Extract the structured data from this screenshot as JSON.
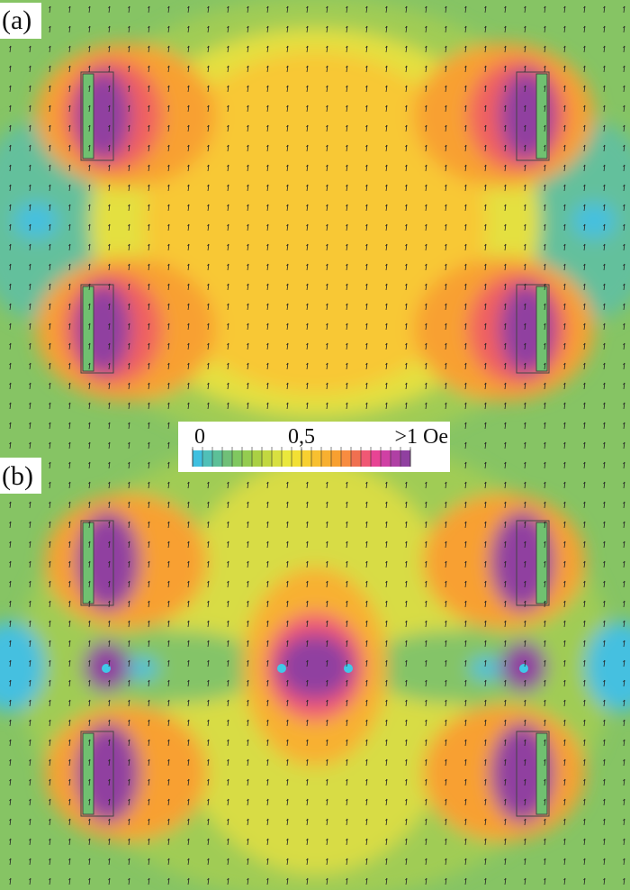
{
  "chart_data": {
    "type": "field-map",
    "panels": [
      {
        "label": "(a)"
      },
      {
        "label": "(b)"
      }
    ],
    "colorbar": {
      "clim": [
        0,
        1
      ],
      "ticks": [
        0,
        {
          "value": 0.5,
          "label": "0,5"
        },
        {
          "value": 1,
          "label": ">1 Oe"
        }
      ],
      "colors": [
        "#40c0e0",
        "#50c0b8",
        "#5cc098",
        "#70c078",
        "#80c860",
        "#94cc50",
        "#aad044",
        "#c2d840",
        "#d8e040",
        "#eae83c",
        "#f2e034",
        "#f8d030",
        "#f8c030",
        "#f8b030",
        "#f8a030",
        "#f88c40",
        "#f07050",
        "#f05874",
        "#e84494",
        "#d040a4",
        "#b040a4",
        "#9040a0"
      ]
    }
  }
}
